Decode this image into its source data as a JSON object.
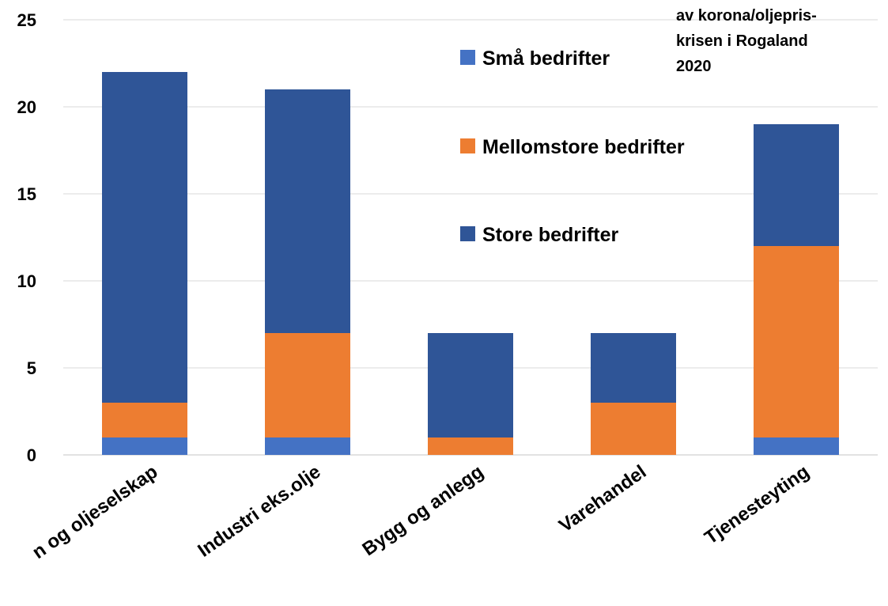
{
  "chart_data": {
    "type": "bar",
    "stacked": true,
    "title_lines": [
      "av korona/oljepris-",
      "krisen i Rogaland",
      "2020"
    ],
    "categories": [
      "n og oljeselskap",
      "Industri eks.olje",
      "Bygg og anlegg",
      "Varehandel",
      "Tjenesteyting"
    ],
    "series": [
      {
        "name": "Små bedrifter",
        "color": "#4472c4",
        "values": [
          1,
          1,
          0,
          0,
          1
        ]
      },
      {
        "name": "Mellomstore bedrifter",
        "color": "#ed7d31",
        "values": [
          2,
          6,
          1,
          3,
          11
        ]
      },
      {
        "name": "Store bedrifter",
        "color": "#2f5597",
        "values": [
          19,
          14,
          6,
          4,
          7
        ]
      }
    ],
    "yticks": [
      0,
      5,
      10,
      15,
      20,
      25
    ],
    "ylim": [
      0,
      25
    ],
    "grid": true,
    "legend_position": "top-right"
  }
}
